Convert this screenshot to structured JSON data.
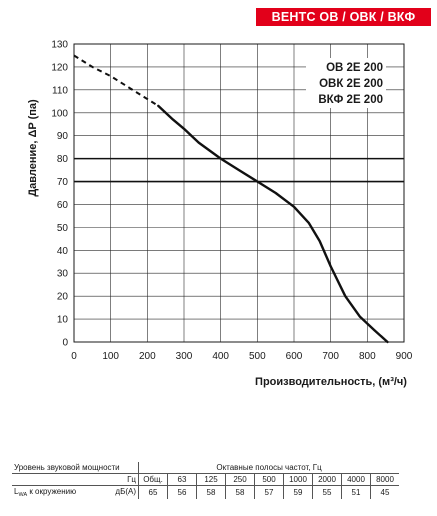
{
  "header": {
    "badge": "ВЕНТС ОВ / ОВК / ВКФ"
  },
  "chart_data": {
    "type": "line",
    "ylabel": "Давление, ΔP (па)",
    "xlabel": "Производительность, (м³/ч)",
    "xlim": [
      0,
      900
    ],
    "ylim": [
      0,
      130
    ],
    "x_ticks": [
      "0",
      "100",
      "200",
      "300",
      "400",
      "500",
      "600",
      "700",
      "800",
      "900"
    ],
    "y_ticks": [
      "0",
      "10",
      "20",
      "30",
      "40",
      "50",
      "60",
      "70",
      "80",
      "90",
      "100",
      "110",
      "120",
      "130"
    ],
    "grid": true,
    "models": [
      "ОВ 2Е 200",
      "ОВК 2Е 200",
      "ВКФ 2Е 200"
    ],
    "reference_lines": [
      80,
      70
    ],
    "series": [
      {
        "style": "dashed",
        "x": [
          0,
          50,
          100,
          150,
          200,
          230
        ],
        "y": [
          125,
          120,
          116,
          111,
          106,
          103
        ]
      },
      {
        "style": "solid",
        "x": [
          230,
          270,
          300,
          340,
          400,
          450,
          500,
          550,
          600,
          640,
          670,
          700,
          740,
          780,
          820,
          855
        ],
        "y": [
          103,
          97,
          93,
          87,
          80,
          75,
          70,
          65,
          59,
          52,
          44,
          33,
          20,
          11,
          5,
          0
        ]
      }
    ]
  },
  "sound_table": {
    "row1_label": "Уровень звуковой мощности",
    "bands_title": "Октавные полосы частот, Гц",
    "row2_unit": "Гц",
    "header_cols": [
      "Общ.",
      "63",
      "125",
      "250",
      "500",
      "1000",
      "2000",
      "4000",
      "8000"
    ],
    "row3_label_prefix": "L",
    "row3_label_sub": "WA",
    "row3_label_suffix": " к окружению",
    "row3_unit": "дБ(А)",
    "values": [
      "65",
      "56",
      "58",
      "58",
      "57",
      "59",
      "55",
      "51",
      "45"
    ]
  }
}
